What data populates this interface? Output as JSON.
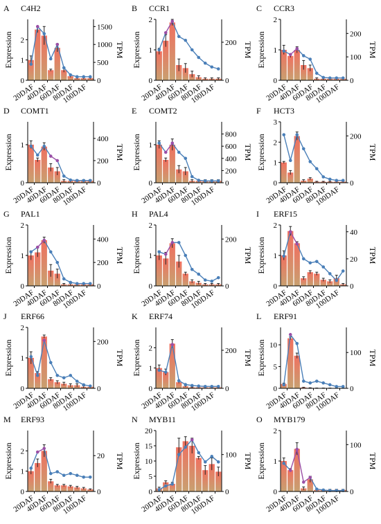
{
  "figure": {
    "colors": {
      "bar_top": "#f07060",
      "bar_bottom": "#c8a070",
      "line": "#4a7fb8",
      "line_highlight": "#9a4fa6",
      "axis": "#000000",
      "error": "#222222"
    }
  },
  "chart_data": [
    {
      "type": "bar+line",
      "letter": "A",
      "title": "C4H2",
      "ylabel": "Expression",
      "y2label": "TPM",
      "ylim": [
        0,
        3
      ],
      "y_ticks": [
        "0",
        "1",
        "2"
      ],
      "y2lim": [
        0,
        1700
      ],
      "y2_ticks": [
        "0",
        "500",
        "1000",
        "1500"
      ],
      "x_ticks": [
        "20DAF",
        "40DAF",
        "60DAF",
        "80DAF",
        "100DAF"
      ],
      "categories": [
        "1",
        "2",
        "3",
        "4",
        "5",
        "6",
        "7",
        "8",
        "9",
        "10"
      ],
      "expression": [
        1.0,
        2.5,
        2.2,
        0.5,
        1.6,
        0.5,
        0.2,
        0.1,
        0.1,
        0.1
      ],
      "expression_error": [
        0.2,
        0.15,
        0.45,
        0.05,
        0.2,
        0.1,
        0.05,
        0.03,
        0.03,
        0.03
      ],
      "tpm": [
        450,
        1500,
        1300,
        600,
        1000,
        350,
        150,
        100,
        100,
        100
      ],
      "highlight_points": [
        1,
        4
      ]
    },
    {
      "type": "bar+line",
      "letter": "B",
      "title": "CCR1",
      "ylabel": "Expression",
      "y2label": "TPM",
      "ylim": [
        0,
        2
      ],
      "y_ticks": [
        "0",
        "1",
        "2"
      ],
      "y2lim": [
        0,
        320
      ],
      "y2_ticks": [
        "0",
        "200"
      ],
      "x_ticks": [
        "20DAF",
        "40DAF",
        "60DAF",
        "80DAF",
        "100DAF"
      ],
      "categories": [
        "1",
        "2",
        "3",
        "4",
        "5",
        "6",
        "7",
        "8",
        "9",
        "10"
      ],
      "expression": [
        0.95,
        1.3,
        1.9,
        0.5,
        0.4,
        0.2,
        0.1,
        0.05,
        0.05,
        0.05
      ],
      "expression_error": [
        0.1,
        0.2,
        0.1,
        0.2,
        0.15,
        0.1,
        0.05,
        0.03,
        0.03,
        0.03
      ],
      "tpm": [
        160,
        250,
        310,
        230,
        210,
        160,
        120,
        90,
        70,
        60
      ],
      "highlight_points": [
        1,
        2
      ]
    },
    {
      "type": "bar+line",
      "letter": "C",
      "title": "CCR3",
      "ylabel": "Expression",
      "y2label": "TPM",
      "ylim": [
        0,
        2
      ],
      "y_ticks": [
        "0",
        "1",
        "2"
      ],
      "y2lim": [
        0,
        260
      ],
      "y2_ticks": [
        "0",
        "100",
        "200"
      ],
      "x_ticks": [
        "20DAF",
        "40DAF",
        "60DAF",
        "80DAF",
        "100DAF"
      ],
      "categories": [
        "1",
        "2",
        "3",
        "4",
        "5",
        "6",
        "7",
        "8",
        "9",
        "10"
      ],
      "expression": [
        1.0,
        0.8,
        1.0,
        0.5,
        0.4,
        0.05,
        0.05,
        0.05,
        0.05,
        0.05
      ],
      "expression_error": [
        0.15,
        0.05,
        0.1,
        0.15,
        0.1,
        0.03,
        0.03,
        0.03,
        0.03,
        0.03
      ],
      "tpm": [
        125,
        110,
        135,
        105,
        90,
        30,
        12,
        10,
        10,
        10
      ],
      "highlight_points": [
        1,
        2
      ]
    },
    {
      "type": "bar+line",
      "letter": "D",
      "title": "COMT1",
      "ylabel": "Expression",
      "y2label": "TPM",
      "ylim": [
        0,
        1.6
      ],
      "y_ticks": [
        "0",
        "1"
      ],
      "y2lim": [
        0,
        550
      ],
      "y2_ticks": [
        "0",
        "200",
        "400"
      ],
      "x_ticks": [
        "20DAF",
        "40DAF",
        "60DAF",
        "80DAF",
        "100DAF"
      ],
      "categories": [
        "1",
        "2",
        "3",
        "4",
        "5",
        "6",
        "7",
        "8",
        "9",
        "10"
      ],
      "expression": [
        1.0,
        0.6,
        0.95,
        0.4,
        0.3,
        0.05,
        0.05,
        0.05,
        0.05,
        0.05
      ],
      "expression_error": [
        0.1,
        0.05,
        0.1,
        0.1,
        0.1,
        0.03,
        0.03,
        0.03,
        0.03,
        0.03
      ],
      "tpm": [
        330,
        250,
        330,
        240,
        200,
        60,
        25,
        20,
        20,
        20
      ],
      "highlight_points": [
        3,
        4
      ]
    },
    {
      "type": "bar+line",
      "letter": "E",
      "title": "COMT2",
      "ylabel": "Expression",
      "y2label": "TPM",
      "ylim": [
        0,
        1.6
      ],
      "y_ticks": [
        "0",
        "1"
      ],
      "y2lim": [
        0,
        1000
      ],
      "y2_ticks": [
        "0",
        "200",
        "400",
        "600",
        "800"
      ],
      "x_ticks": [
        "20DAF",
        "40DAF",
        "60DAF",
        "80DAF",
        "100DAF"
      ],
      "categories": [
        "1",
        "2",
        "3",
        "4",
        "5",
        "6",
        "7",
        "8",
        "9",
        "10"
      ],
      "expression": [
        1.0,
        0.6,
        1.0,
        0.35,
        0.3,
        0.05,
        0.05,
        0.05,
        0.05,
        0.05
      ],
      "expression_error": [
        0.1,
        0.05,
        0.15,
        0.1,
        0.1,
        0.03,
        0.03,
        0.03,
        0.03,
        0.03
      ],
      "tpm": [
        650,
        500,
        650,
        500,
        400,
        100,
        40,
        30,
        30,
        30
      ],
      "highlight_points": [
        1,
        2
      ]
    },
    {
      "type": "bar+line",
      "letter": "F",
      "title": "HCT3",
      "ylabel": "Expression",
      "y2label": "TPM",
      "ylim": [
        0,
        3
      ],
      "y_ticks": [
        "0",
        "1",
        "2",
        "3"
      ],
      "y2lim": [
        0,
        260
      ],
      "y2_ticks": [
        "0",
        "200"
      ],
      "x_ticks": [
        "20DAF",
        "40DAF",
        "60DAF",
        "80DAF",
        "100DAF"
      ],
      "categories": [
        "1",
        "2",
        "3",
        "4",
        "5",
        "6",
        "7",
        "8",
        "9",
        "10"
      ],
      "expression": [
        1.0,
        0.5,
        2.3,
        0.1,
        0.2,
        0.05,
        0.05,
        0.05,
        0.05,
        0.05
      ],
      "expression_error": [
        0.05,
        0.1,
        0.2,
        0.05,
        0.05,
        0.02,
        0.02,
        0.02,
        0.02,
        0.02
      ],
      "tpm": [
        205,
        95,
        205,
        145,
        90,
        60,
        25,
        15,
        10,
        10
      ],
      "highlight_points": []
    },
    {
      "type": "bar+line",
      "letter": "G",
      "title": "PAL1",
      "ylabel": "Expression",
      "y2label": "TPM",
      "ylim": [
        0,
        2
      ],
      "y_ticks": [
        "0",
        "1",
        "2"
      ],
      "y2lim": [
        0,
        520
      ],
      "y2_ticks": [
        "0",
        "200",
        "400"
      ],
      "x_ticks": [
        "20DAF",
        "40DAF",
        "60DAF",
        "80DAF",
        "100DAF"
      ],
      "categories": [
        "1",
        "2",
        "3",
        "4",
        "5",
        "6",
        "7",
        "8",
        "9",
        "10"
      ],
      "expression": [
        1.0,
        1.1,
        1.5,
        0.5,
        0.4,
        0.05,
        0.05,
        0.05,
        0.05,
        0.05
      ],
      "expression_error": [
        0.15,
        0.15,
        0.1,
        0.2,
        0.15,
        0.03,
        0.03,
        0.03,
        0.03,
        0.03
      ],
      "tpm": [
        290,
        330,
        390,
        290,
        200,
        60,
        30,
        20,
        20,
        20
      ],
      "highlight_points": [
        1,
        2
      ]
    },
    {
      "type": "bar+line",
      "letter": "H",
      "title": "PAL4",
      "ylabel": "Expression",
      "y2label": "TPM",
      "ylim": [
        0,
        2
      ],
      "y_ticks": [
        "0",
        "1",
        "2"
      ],
      "y2lim": [
        0,
        260
      ],
      "y2_ticks": [
        "0",
        "200"
      ],
      "x_ticks": [
        "20DAF",
        "40DAF",
        "60DAF",
        "80DAF",
        "100DAF"
      ],
      "categories": [
        "1",
        "2",
        "3",
        "4",
        "5",
        "6",
        "7",
        "8",
        "9",
        "10"
      ],
      "expression": [
        1.0,
        0.9,
        1.4,
        0.8,
        0.4,
        0.15,
        0.1,
        0.05,
        0.05,
        0.05
      ],
      "expression_error": [
        0.15,
        0.2,
        0.15,
        0.2,
        0.05,
        0.05,
        0.05,
        0.03,
        0.03,
        0.03
      ],
      "tpm": [
        145,
        135,
        185,
        185,
        130,
        70,
        50,
        25,
        20,
        35
      ],
      "highlight_points": [
        1,
        2
      ]
    },
    {
      "type": "bar+line",
      "letter": "I",
      "title": "ERF15",
      "ylabel": "Expression",
      "y2label": "TPM",
      "ylim": [
        0,
        2
      ],
      "y_ticks": [
        "0",
        "1",
        "2"
      ],
      "y2lim": [
        0,
        45
      ],
      "y2_ticks": [
        "0",
        "20",
        "40"
      ],
      "x_ticks": [
        "20DAF",
        "40DAF",
        "60DAF",
        "80DAF",
        "100DAF"
      ],
      "categories": [
        "1",
        "2",
        "3",
        "4",
        "5",
        "6",
        "7",
        "8",
        "9",
        "10"
      ],
      "expression": [
        1.0,
        1.8,
        1.4,
        0.25,
        0.45,
        0.4,
        0.2,
        0.15,
        0.25,
        0.05
      ],
      "expression_error": [
        0.15,
        0.15,
        0.05,
        0.05,
        0.05,
        0.05,
        0.05,
        0.05,
        0.1,
        0.03
      ],
      "tpm": [
        22,
        40,
        31,
        20,
        17,
        18,
        14,
        9,
        4,
        11
      ],
      "highlight_points": [
        1,
        2
      ]
    },
    {
      "type": "bar+line",
      "letter": "J",
      "title": "ERF66",
      "ylabel": "Expression",
      "y2label": "TPM",
      "ylim": [
        0,
        2
      ],
      "y_ticks": [
        "0",
        "1",
        "2"
      ],
      "y2lim": [
        0,
        260
      ],
      "y2_ticks": [
        "0",
        "200"
      ],
      "x_ticks": [
        "20DAF",
        "40DAF",
        "60DAF",
        "80DAF",
        "100DAF"
      ],
      "categories": [
        "1",
        "2",
        "3",
        "4",
        "5",
        "6",
        "7",
        "8",
        "9",
        "10"
      ],
      "expression": [
        1.0,
        0.5,
        1.7,
        0.3,
        0.2,
        0.15,
        0.1,
        0.1,
        0.05,
        0.05
      ],
      "expression_error": [
        0.2,
        0.05,
        0.05,
        0.05,
        0.05,
        0.05,
        0.05,
        0.05,
        0.03,
        0.03
      ],
      "tpm": [
        135,
        55,
        205,
        110,
        55,
        45,
        55,
        30,
        15,
        10
      ],
      "highlight_points": [
        2
      ]
    },
    {
      "type": "bar+line",
      "letter": "K",
      "title": "ERF74",
      "ylabel": "Expression",
      "y2label": "TPM",
      "ylim": [
        0,
        3
      ],
      "y_ticks": [
        "0",
        "1",
        "2"
      ],
      "y2lim": [
        0,
        320
      ],
      "y2_ticks": [
        "0",
        "200"
      ],
      "x_ticks": [
        "20DAF",
        "40DAF",
        "60DAF",
        "80DAF",
        "100DAF"
      ],
      "categories": [
        "1",
        "2",
        "3",
        "4",
        "5",
        "6",
        "7",
        "8",
        "9",
        "10"
      ],
      "expression": [
        1.0,
        0.8,
        2.2,
        0.3,
        0.1,
        0.05,
        0.05,
        0.05,
        0.05,
        0.05
      ],
      "expression_error": [
        0.15,
        0.15,
        0.2,
        0.05,
        0.03,
        0.02,
        0.02,
        0.02,
        0.02,
        0.02
      ],
      "tpm": [
        95,
        85,
        230,
        40,
        20,
        15,
        12,
        10,
        10,
        10
      ],
      "highlight_points": [
        2
      ]
    },
    {
      "type": "bar+line",
      "letter": "L",
      "title": "ERF91",
      "ylabel": "Expression",
      "y2label": "TPM",
      "ylim": [
        0,
        14
      ],
      "y_ticks": [
        "0",
        "5",
        "10"
      ],
      "y2lim": [
        0,
        170
      ],
      "y2_ticks": [
        "0",
        "100"
      ],
      "x_ticks": [
        "20DAF",
        "40DAF",
        "60DAF",
        "80DAF",
        "100DAF"
      ],
      "categories": [
        "1",
        "2",
        "3",
        "4",
        "5",
        "6",
        "7",
        "8",
        "9",
        "10"
      ],
      "expression": [
        1.0,
        11.5,
        7.5,
        0.2,
        0.1,
        0.05,
        0.05,
        0.05,
        0.05,
        0.05
      ],
      "expression_error": [
        0.2,
        0.3,
        0.6,
        0.05,
        0.03,
        0.02,
        0.02,
        0.02,
        0.02,
        0.02
      ],
      "tpm": [
        10,
        150,
        125,
        20,
        15,
        20,
        15,
        10,
        5,
        5
      ],
      "highlight_points": [
        1
      ]
    },
    {
      "type": "bar+line",
      "letter": "M",
      "title": "ERF93",
      "ylabel": "Expression",
      "y2label": "TPM",
      "ylim": [
        0,
        3
      ],
      "y_ticks": [
        "0",
        "1",
        "2"
      ],
      "y2lim": [
        0,
        34
      ],
      "y2_ticks": [
        "0",
        "20"
      ],
      "x_ticks": [
        "20DAF",
        "40DAF",
        "60DAF",
        "80DAF",
        "100DAF"
      ],
      "categories": [
        "1",
        "2",
        "3",
        "4",
        "5",
        "6",
        "7",
        "8",
        "9",
        "10"
      ],
      "expression": [
        1.0,
        1.4,
        2.0,
        0.5,
        0.3,
        0.3,
        0.25,
        0.2,
        0.15,
        0.1
      ],
      "expression_error": [
        0.15,
        0.2,
        0.3,
        0.1,
        0.05,
        0.05,
        0.05,
        0.05,
        0.05,
        0.03
      ],
      "tpm": [
        13,
        22,
        24,
        10,
        11,
        9,
        10,
        9,
        8,
        8
      ],
      "highlight_points": [
        1,
        2
      ]
    },
    {
      "type": "bar+line",
      "letter": "N",
      "title": "MYB11",
      "ylabel": "Expression",
      "y2label": "TPM",
      "ylim": [
        0,
        20
      ],
      "y_ticks": [
        "0",
        "5",
        "10",
        "15",
        "20"
      ],
      "y2lim": [
        0,
        165
      ],
      "y2_ticks": [
        "0",
        "100"
      ],
      "x_ticks": [
        "20DAF",
        "40DAF",
        "60DAF",
        "80DAF",
        "100DAF"
      ],
      "categories": [
        "1",
        "2",
        "3",
        "4",
        "5",
        "6",
        "7",
        "8",
        "9",
        "10"
      ],
      "expression": [
        1.0,
        3.0,
        2.5,
        14.5,
        16.5,
        15.0,
        11.0,
        7.0,
        9.0,
        6.5
      ],
      "expression_error": [
        0.4,
        0.5,
        0.5,
        3.0,
        1.5,
        2.5,
        0.5,
        1.5,
        2.0,
        1.5
      ],
      "tpm": [
        5,
        15,
        20,
        100,
        120,
        140,
        105,
        80,
        95,
        80
      ],
      "highlight_points": [
        5
      ]
    },
    {
      "type": "bar+line",
      "letter": "O",
      "title": "MYB179",
      "ylabel": "Expression",
      "y2label": "TPM",
      "ylim": [
        0,
        2
      ],
      "y_ticks": [
        "0",
        "1",
        "2"
      ],
      "y2lim": [
        0,
        130
      ],
      "y2_ticks": [
        "0",
        "100"
      ],
      "x_ticks": [
        "20DAF",
        "40DAF",
        "60DAF",
        "80DAF",
        "100DAF"
      ],
      "categories": [
        "1",
        "2",
        "3",
        "4",
        "5",
        "6",
        "7",
        "8",
        "9",
        "10"
      ],
      "expression": [
        1.0,
        0.7,
        1.4,
        0.1,
        0.4,
        0.05,
        0.05,
        0.05,
        0.05,
        0.05
      ],
      "expression_error": [
        0.1,
        0.05,
        0.2,
        0.05,
        0.1,
        0.02,
        0.02,
        0.02,
        0.02,
        0.02
      ],
      "tpm": [
        60,
        45,
        90,
        20,
        30,
        5,
        3,
        2,
        2,
        2
      ],
      "highlight_points": [
        1,
        2,
        3,
        4
      ]
    }
  ]
}
